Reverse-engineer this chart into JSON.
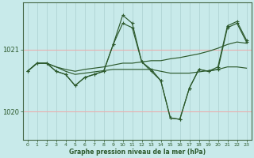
{
  "background_color": "#c8eaea",
  "grid_color_v": "#b0d4d4",
  "grid_color_h": "#e8b0b0",
  "line_color": "#2d5a2d",
  "xlabel": "Graphe pression niveau de la mer (hPa)",
  "ylabel_ticks": [
    1020,
    1021
  ],
  "x_ticks": [
    0,
    1,
    2,
    3,
    4,
    5,
    6,
    7,
    8,
    9,
    10,
    11,
    12,
    13,
    14,
    15,
    16,
    17,
    18,
    19,
    20,
    21,
    22,
    23
  ],
  "xlim": [
    -0.5,
    23.5
  ],
  "ylim": [
    1019.55,
    1021.75
  ],
  "series_no_marker": [
    [
      1020.65,
      1020.78,
      1020.78,
      1020.72,
      1020.68,
      1020.65,
      1020.68,
      1020.7,
      1020.72,
      1020.75,
      1020.78,
      1020.78,
      1020.8,
      1020.82,
      1020.82,
      1020.85,
      1020.87,
      1020.9,
      1020.93,
      1020.97,
      1021.02,
      1021.08,
      1021.12,
      1021.1
    ],
    [
      1020.65,
      1020.78,
      1020.78,
      1020.72,
      1020.65,
      1020.6,
      1020.62,
      1020.64,
      1020.66,
      1020.68,
      1020.68,
      1020.68,
      1020.68,
      1020.68,
      1020.65,
      1020.62,
      1020.62,
      1020.62,
      1020.64,
      1020.66,
      1020.68,
      1020.72,
      1020.72,
      1020.7
    ]
  ],
  "series_with_marker": [
    [
      1020.65,
      1020.78,
      1020.78,
      1020.65,
      1020.6,
      1020.42,
      1020.55,
      1020.6,
      1020.65,
      1021.08,
      1021.42,
      1021.35,
      1020.8,
      1020.68,
      1020.5,
      1019.9,
      1019.88,
      1020.38,
      1020.68,
      1020.65,
      1020.68,
      1021.35,
      1021.42,
      1021.12
    ],
    [
      1020.65,
      1020.78,
      1020.78,
      1020.65,
      1020.6,
      1020.42,
      1020.55,
      1020.6,
      1020.65,
      1021.08,
      1021.55,
      1021.42,
      1020.8,
      1020.65,
      1020.5,
      1019.9,
      1019.88,
      1020.38,
      1020.68,
      1020.65,
      1020.72,
      1021.38,
      1021.45,
      1021.15
    ]
  ]
}
